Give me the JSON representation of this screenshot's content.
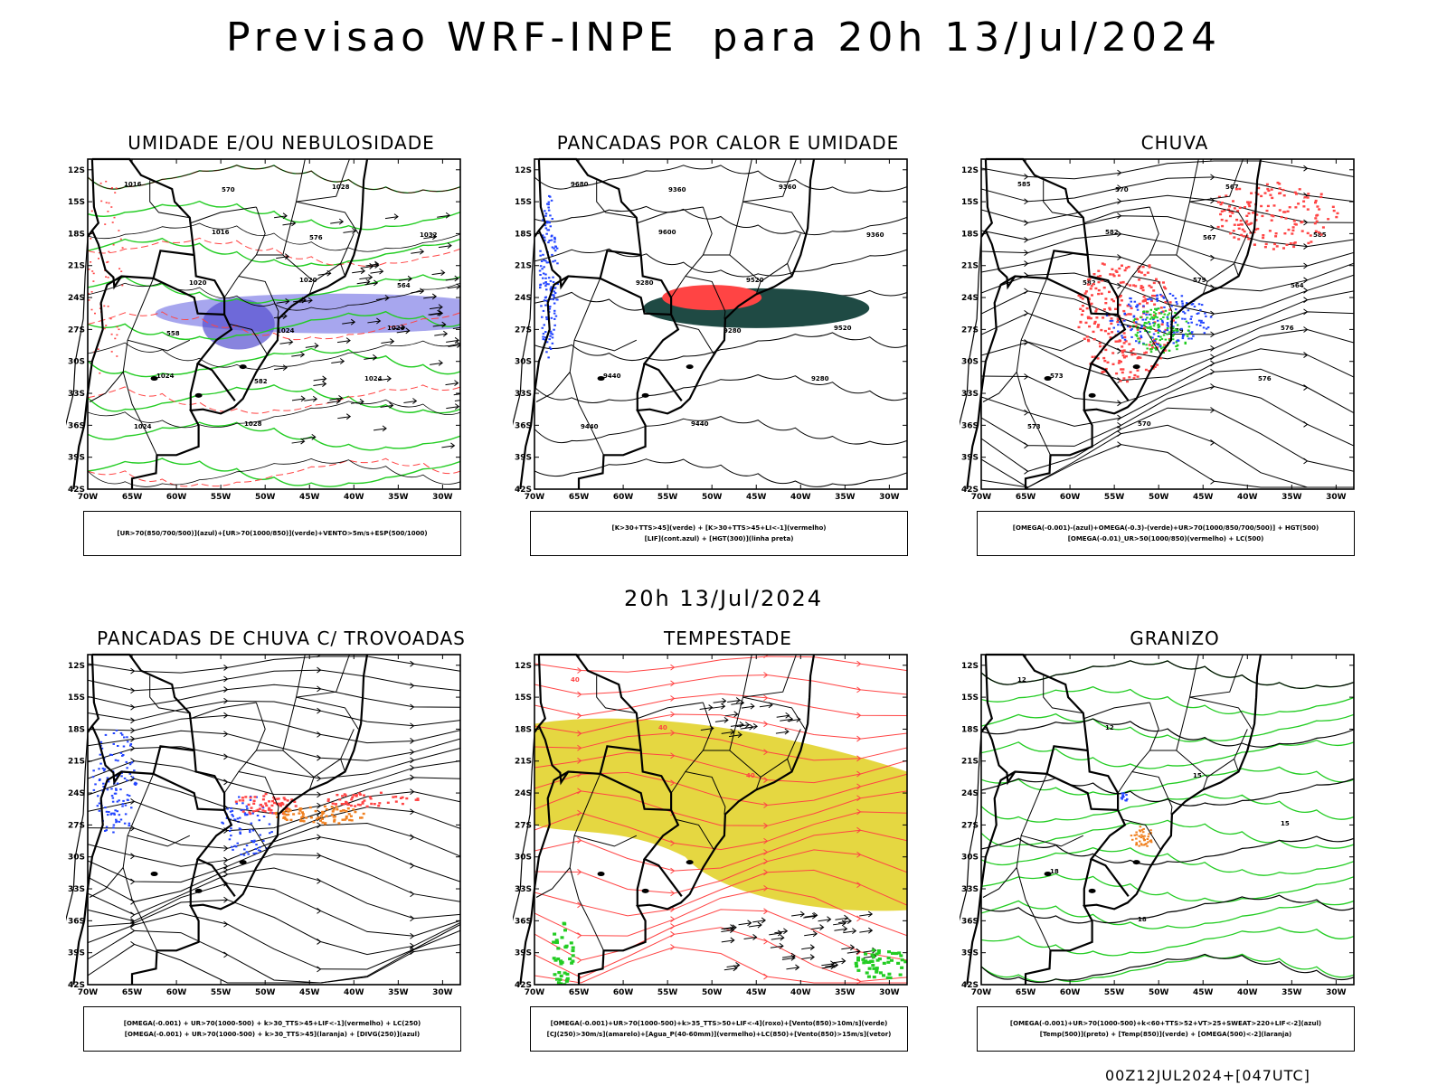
{
  "header": {
    "title": "Previsao WRF-INPE  para 20h 13/Jul/2024",
    "mid_date": "20h 13/Jul/2024",
    "run_stamp": "00Z12JUL2024+[047UTC]"
  },
  "axes": {
    "lat_labels": [
      "12S",
      "15S",
      "18S",
      "21S",
      "24S",
      "27S",
      "30S",
      "33S",
      "36S",
      "39S",
      "42S"
    ],
    "lon_labels": [
      "70W",
      "65W",
      "60W",
      "55W",
      "50W",
      "45W",
      "40W",
      "35W",
      "30W"
    ]
  },
  "colors": {
    "humidity_blue": "#8a88e8",
    "moist_green": "#22cc22",
    "convection_red": "#ff4444",
    "lif_darkgreen": "#1f4a44",
    "jet_yellow": "#e0d020",
    "hail_orange": "#f08020",
    "omega_blue": "#2244ff",
    "streamline": "#000000"
  },
  "panels": [
    {
      "title": "UMIDADE E/OU NEBULOSIDADE",
      "legend": [
        "[UR>70(850/700/500)](azul)+[UR>70(1000/850)](verde)+VENTO>5m/s+ESP(500/1000)"
      ],
      "contour_labels": [
        "1016",
        "1016",
        "1020",
        "1024",
        "1024",
        "1028",
        "1028",
        "1032",
        "1020",
        "1024",
        "1024",
        "1024",
        "570",
        "576",
        "564",
        "558",
        "582"
      ]
    },
    {
      "title": "PANCADAS POR CALOR E UMIDADE",
      "legend": [
        "[K>30+TTS>45](verde) + [K>30+TTS>45+LI<-1](vermelho)",
        "[LIF](cont.azul) + [HGT(300)](linha preta)"
      ],
      "contour_labels": [
        "9680",
        "9600",
        "9520",
        "9520",
        "9440",
        "9440",
        "9360",
        "9360",
        "9280",
        "9280",
        "9280",
        "9440",
        "9360"
      ]
    },
    {
      "title": "CHUVA",
      "legend": [
        "[OMEGA(-0.001)-(azul)+OMEGA(-0.3)-(verde)+UR>70(1000/850/700/500)] + HGT(500)",
        "[OMEGA(-0.01)_UR>50(1000/850)(vermelho) + LC(500)"
      ],
      "contour_labels": [
        "585",
        "582",
        "579",
        "576",
        "573",
        "570",
        "567",
        "585",
        "582",
        "579",
        "576",
        "573",
        "570",
        "567",
        "564"
      ]
    },
    {
      "title": "PANCADAS DE CHUVA C/ TROVOADAS",
      "legend": [
        "[OMEGA(-0.001) + UR>70(1000-500) + k>30_TTS>45+LIF<-1](vermelho) + LC(250)",
        "[OMEGA(-0.001) + UR>70(1000-500) + k>30_TTS>45](laranja) + [DIVG(250)](azul)"
      ],
      "contour_labels": []
    },
    {
      "title": "TEMPESTADE",
      "legend": [
        "[OMEGA(-0.001)+UR>70(1000-500)+k>35_TTS>50+LIF<-4](roxo)+[Vento(850)>10m/s](verde)",
        "[CJ(250)>30m/s](amarelo)+[Agua_P(40-60mm)](vermelho)+LC(850)+[Vento(850)>15m/s](vetor)"
      ],
      "contour_labels": [
        "40",
        "40",
        "40"
      ]
    },
    {
      "title": "GRANIZO",
      "legend": [
        "[OMEGA(-0.001)+UR>70(1000-500)+k<60+TTS>52+VT>25+SWEAT>220+LIF<-2](azul)",
        "[Temp(500)](preto) + [Temp(850)](verde) + [OMEGA(500)<-2](laranja)"
      ],
      "contour_labels": [
        "12",
        "12",
        "15",
        "15",
        "18",
        "18"
      ]
    }
  ]
}
